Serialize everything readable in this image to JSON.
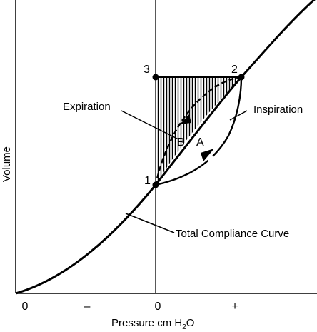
{
  "axes": {
    "y_label": "Volume",
    "x_label": "Pressure cm H",
    "x_label_subscript": "2",
    "x_label_suffix": "O",
    "x_ticks": [
      "0",
      "–",
      "0",
      "+"
    ]
  },
  "points": {
    "p1": "1",
    "p2": "2",
    "p3": "3"
  },
  "loop_labels": {
    "a": "A",
    "b": "B"
  },
  "callouts": {
    "expiration": "Expiration",
    "inspiration": "Inspiration",
    "total_compliance": "Total Compliance Curve"
  },
  "colors": {
    "ink": "#000000",
    "background": "#ffffff"
  }
}
